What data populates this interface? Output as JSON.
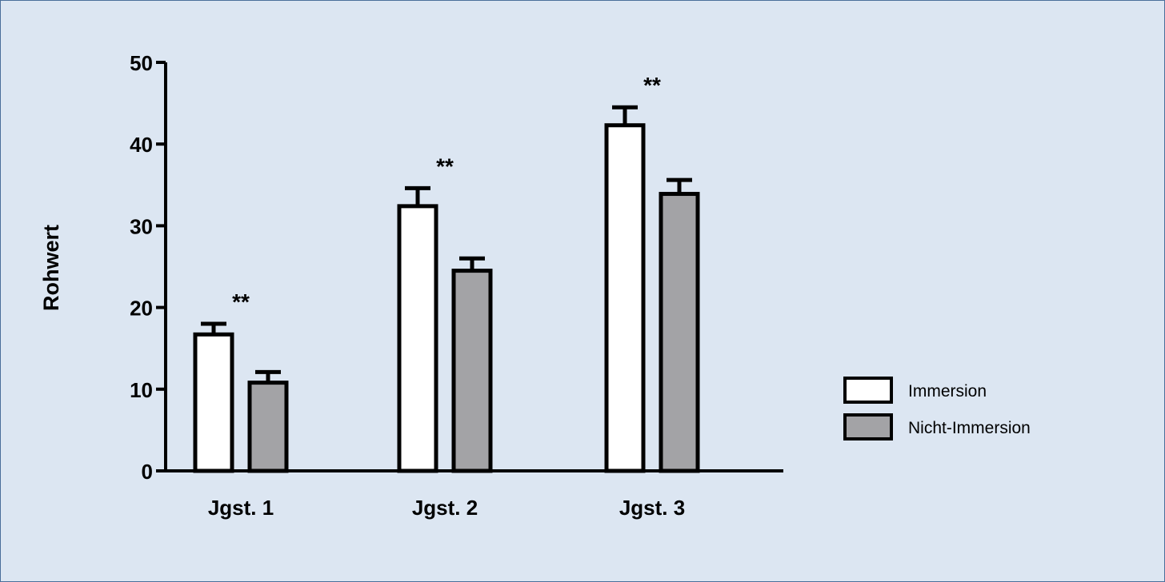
{
  "chart_data": {
    "type": "bar",
    "categories": [
      "Jgst. 1",
      "Jgst. 2",
      "Jgst. 3"
    ],
    "series": [
      {
        "name": "Immersion",
        "values": [
          16.7,
          32.4,
          42.3
        ],
        "errors": [
          1.3,
          2.2,
          2.2
        ],
        "color": "#ffffff"
      },
      {
        "name": "Nicht-Immersion",
        "values": [
          10.8,
          24.5,
          33.9
        ],
        "errors": [
          1.3,
          1.5,
          1.7
        ],
        "color": "#a3a3a6"
      }
    ],
    "annotations": [
      "**",
      "**",
      "**"
    ],
    "title": "",
    "xlabel": "",
    "ylabel": "Rohwert",
    "ylim": [
      0,
      50
    ],
    "yticks": [
      "0",
      "10",
      "20",
      "30",
      "40",
      "50"
    ],
    "grid": false,
    "legend": "right"
  },
  "colors": {
    "background": "#dce6f2",
    "frame": "#4a6f9a",
    "ink": "#000000"
  }
}
